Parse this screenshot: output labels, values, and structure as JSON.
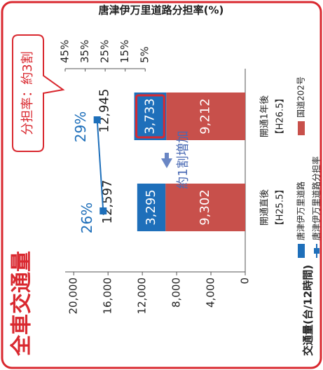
{
  "chart_data": {
    "type": "bar",
    "title": "全車交通量",
    "y_axis_label": "交通量(台/12時間)",
    "y2_axis_label": "唐津伊万里道路分担率(%)",
    "annotation": "分担率：約3割",
    "change_annotation": "約1割増加",
    "categories": [
      "開通直後",
      "開通1年後"
    ],
    "category_sublabels": [
      "【H25.5】",
      "【H26.5】"
    ],
    "stacked": true,
    "series": [
      {
        "name": "国道202号",
        "color": "#c8504b",
        "values": [
          9302,
          9212
        ],
        "value_labels": [
          "9,302",
          "9,212"
        ]
      },
      {
        "name": "唐津伊万里道路",
        "color": "#1e6fba",
        "values": [
          3295,
          3733
        ],
        "value_labels": [
          "3,295",
          "3,733"
        ]
      },
      {
        "name": "唐津伊万里道路分担率",
        "color": "#1e6fba",
        "type": "line",
        "axis": "y2",
        "values": [
          26,
          29
        ],
        "value_labels": [
          "26%",
          "29%"
        ]
      }
    ],
    "totals": [
      12597,
      12945
    ],
    "total_labels": [
      "12,597",
      "12,945"
    ],
    "ylim": [
      0,
      21000
    ],
    "yticks": [
      {
        "value": 20000,
        "label": "20,000"
      },
      {
        "value": 16000,
        "label": "16,000"
      },
      {
        "value": 12000,
        "label": "12,000"
      },
      {
        "value": 8000,
        "label": "8,000"
      },
      {
        "value": 4000,
        "label": "4,000"
      },
      0
    ],
    "y2lim": [
      -45,
      45
    ],
    "y2ticks": [
      {
        "value": 45,
        "label": "45%"
      },
      {
        "value": 35,
        "label": "35%"
      },
      {
        "value": 25,
        "label": "25%"
      },
      {
        "value": 15,
        "label": "15%"
      },
      {
        "value": 5,
        "label": "5%"
      }
    ]
  }
}
